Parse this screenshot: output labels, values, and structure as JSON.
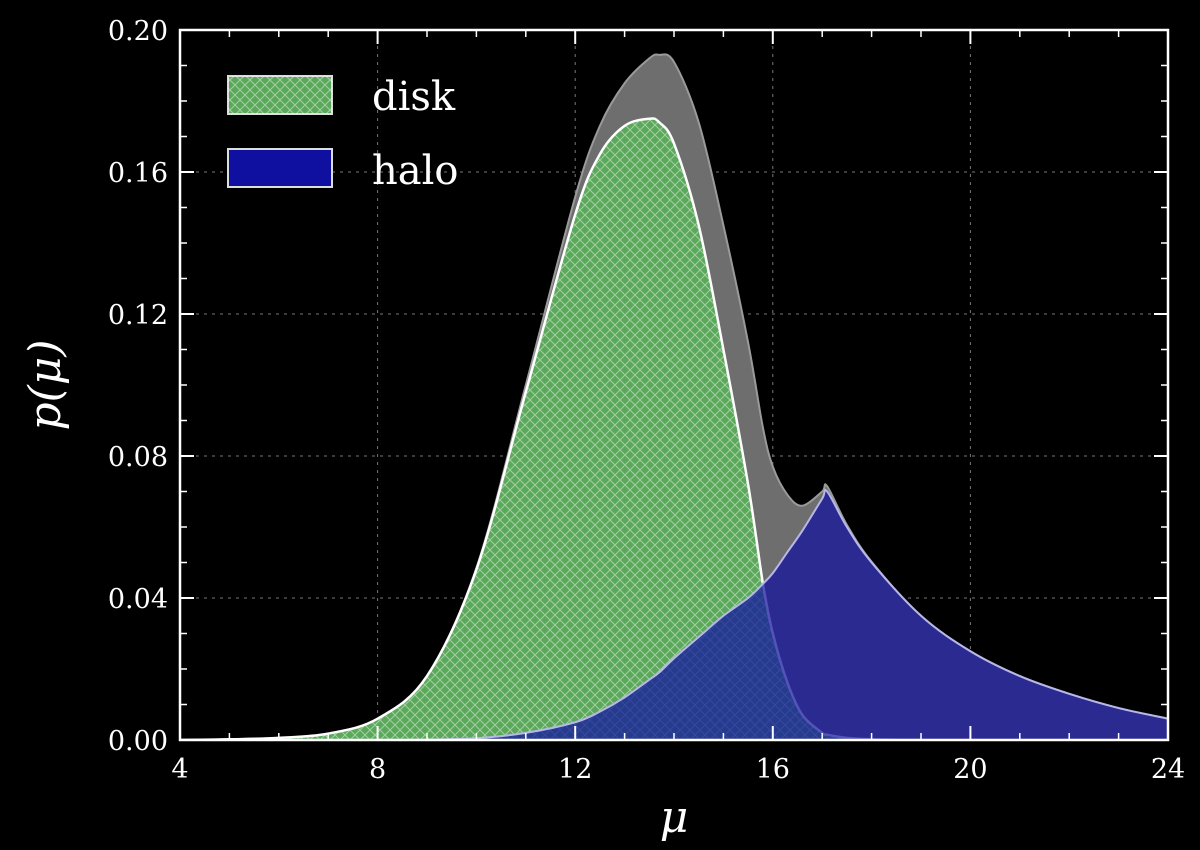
{
  "chart_data": {
    "type": "area",
    "title": "",
    "xlabel": "μ",
    "ylabel": "p(μ)",
    "xlim": [
      4,
      24
    ],
    "ylim": [
      0,
      0.2
    ],
    "xticks": [
      4,
      8,
      12,
      16,
      20,
      24
    ],
    "xtick_labels": [
      "4",
      "8",
      "12",
      "16",
      "20",
      "24"
    ],
    "yticks": [
      0,
      0.04,
      0.08,
      0.12,
      0.16,
      0.2
    ],
    "ytick_labels": [
      "0.00",
      "0.04",
      "0.08",
      "0.12",
      "0.16",
      "0.20"
    ],
    "grid": true,
    "legend_position": "top-left",
    "background": "#000000",
    "x": [
      4,
      5,
      6,
      7,
      8,
      9,
      10,
      11,
      12,
      12.5,
      13,
      13.5,
      13.7,
      14,
      14.5,
      15,
      15.5,
      15.8,
      16,
      16.3,
      16.6,
      17,
      17.1,
      17.5,
      18,
      19,
      20,
      21,
      22,
      23,
      24
    ],
    "series": [
      {
        "name": "disk",
        "color": "#5aa85a",
        "hatch": "crosshatch",
        "values": [
          0.0,
          0.0002,
          0.0006,
          0.0018,
          0.006,
          0.018,
          0.048,
          0.098,
          0.148,
          0.165,
          0.173,
          0.175,
          0.174,
          0.168,
          0.145,
          0.11,
          0.072,
          0.044,
          0.03,
          0.016,
          0.007,
          0.002,
          0.0015,
          0.0006,
          0.0002,
          0.0,
          0.0,
          0.0,
          0.0,
          0.0,
          0.0
        ]
      },
      {
        "name": "halo",
        "color": "#1010a0",
        "values": [
          0.0,
          0.0,
          0.0,
          0.0,
          0.0,
          0.0001,
          0.0005,
          0.002,
          0.005,
          0.008,
          0.012,
          0.017,
          0.019,
          0.023,
          0.029,
          0.035,
          0.04,
          0.044,
          0.047,
          0.053,
          0.059,
          0.068,
          0.07,
          0.06,
          0.05,
          0.035,
          0.025,
          0.018,
          0.013,
          0.009,
          0.006
        ]
      }
    ],
    "total": {
      "color": "#6e6e6e",
      "values": [
        0.0,
        0.0002,
        0.0006,
        0.0018,
        0.006,
        0.0181,
        0.0485,
        0.1,
        0.153,
        0.173,
        0.185,
        0.192,
        0.193,
        0.191,
        0.174,
        0.145,
        0.112,
        0.088,
        0.077,
        0.069,
        0.066,
        0.07,
        0.0715,
        0.0606,
        0.0502,
        0.035,
        0.025,
        0.018,
        0.013,
        0.009,
        0.006
      ]
    }
  }
}
